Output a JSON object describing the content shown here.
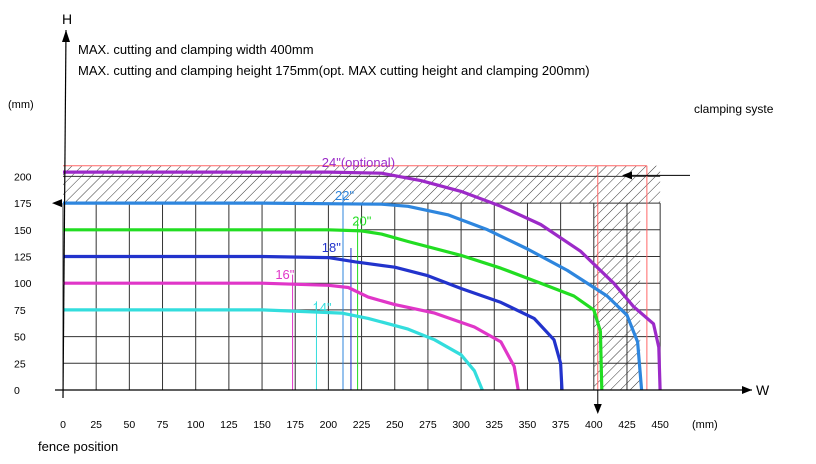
{
  "chart_data": {
    "type": "line",
    "title_lines": [
      "MAX. cutting and clamping width 400mm",
      "MAX. cutting and clamping height 175mm(opt. MAX cutting height and clamping 200mm)"
    ],
    "y_axis_letter": "H",
    "x_axis_letter": "W",
    "y_unit": "(mm)",
    "x_unit": "(mm)",
    "xlabel": "fence position",
    "clamping_label": "clamping syste",
    "xlim": [
      0,
      475
    ],
    "ylim": [
      0,
      225
    ],
    "x_ticks": [
      0,
      25,
      50,
      75,
      100,
      125,
      150,
      175,
      200,
      225,
      250,
      275,
      300,
      325,
      350,
      375,
      400,
      425,
      450
    ],
    "y_ticks": [
      0,
      25,
      50,
      75,
      100,
      125,
      150,
      175,
      200
    ],
    "grid": true,
    "hatched_zones": [
      {
        "name": "top-band",
        "x": [
          0,
          450
        ],
        "y": [
          175,
          210
        ]
      },
      {
        "name": "right-band",
        "x": [
          400,
          435
        ],
        "y": [
          0,
          175
        ]
      }
    ],
    "boundary_lines": [
      {
        "kind": "vertical",
        "x": 403,
        "y": [
          0,
          210
        ],
        "color": "#ff6666"
      },
      {
        "kind": "vertical",
        "x": 440,
        "y": [
          0,
          210
        ],
        "color": "#ff6666"
      },
      {
        "kind": "horizontal",
        "y": 210,
        "x": [
          0,
          440
        ],
        "color": "#ff6666"
      }
    ],
    "series": [
      {
        "name": "24\"(optional)",
        "color": "#9c2ac8",
        "label_at": [
          195,
          209
        ],
        "marker_x": 0,
        "points": [
          [
            0,
            204
          ],
          [
            150,
            204
          ],
          [
            200,
            204
          ],
          [
            240,
            203
          ],
          [
            270,
            196
          ],
          [
            300,
            186
          ],
          [
            330,
            172
          ],
          [
            360,
            155
          ],
          [
            390,
            130
          ],
          [
            415,
            100
          ],
          [
            430,
            78
          ],
          [
            445,
            62
          ],
          [
            449,
            40
          ],
          [
            450,
            0
          ]
        ]
      },
      {
        "name": "22\"",
        "color": "#2e86de",
        "label_at": [
          205,
          178
        ],
        "marker_x": 211,
        "points": [
          [
            0,
            175
          ],
          [
            150,
            175
          ],
          [
            240,
            174
          ],
          [
            260,
            172
          ],
          [
            290,
            164
          ],
          [
            320,
            150
          ],
          [
            350,
            132
          ],
          [
            380,
            112
          ],
          [
            410,
            88
          ],
          [
            425,
            70
          ],
          [
            433,
            45
          ],
          [
            436,
            0
          ]
        ]
      },
      {
        "name": "20\"",
        "color": "#22dd22",
        "label_at": [
          218,
          154
        ],
        "marker_x": 222,
        "points": [
          [
            0,
            150
          ],
          [
            200,
            150
          ],
          [
            225,
            149
          ],
          [
            240,
            146
          ],
          [
            260,
            139
          ],
          [
            300,
            126
          ],
          [
            330,
            114
          ],
          [
            360,
            100
          ],
          [
            385,
            88
          ],
          [
            400,
            75
          ],
          [
            405,
            55
          ],
          [
            406,
            0
          ]
        ]
      },
      {
        "name": "18\"",
        "color": "#2233cc",
        "label_at": [
          195,
          129
        ],
        "marker_x": 217,
        "points": [
          [
            0,
            125
          ],
          [
            150,
            125
          ],
          [
            200,
            124
          ],
          [
            220,
            120
          ],
          [
            250,
            115
          ],
          [
            275,
            107
          ],
          [
            300,
            95
          ],
          [
            330,
            82
          ],
          [
            355,
            67
          ],
          [
            370,
            47
          ],
          [
            375,
            25
          ],
          [
            376,
            0
          ]
        ]
      },
      {
        "name": "16\"",
        "color": "#e036c8",
        "label_at": [
          160,
          104
        ],
        "marker_x": 173,
        "points": [
          [
            0,
            100
          ],
          [
            150,
            100
          ],
          [
            200,
            98
          ],
          [
            215,
            96
          ],
          [
            230,
            87
          ],
          [
            250,
            80
          ],
          [
            280,
            72
          ],
          [
            310,
            59
          ],
          [
            330,
            45
          ],
          [
            340,
            22
          ],
          [
            343,
            0
          ]
        ]
      },
      {
        "name": "14\"",
        "color": "#33dddd",
        "label_at": [
          188,
          73
        ],
        "marker_x": 191,
        "points": [
          [
            0,
            75
          ],
          [
            150,
            75
          ],
          [
            190,
            73
          ],
          [
            210,
            72
          ],
          [
            230,
            67
          ],
          [
            260,
            57
          ],
          [
            280,
            47
          ],
          [
            300,
            33
          ],
          [
            310,
            18
          ],
          [
            316,
            0
          ]
        ]
      }
    ]
  }
}
